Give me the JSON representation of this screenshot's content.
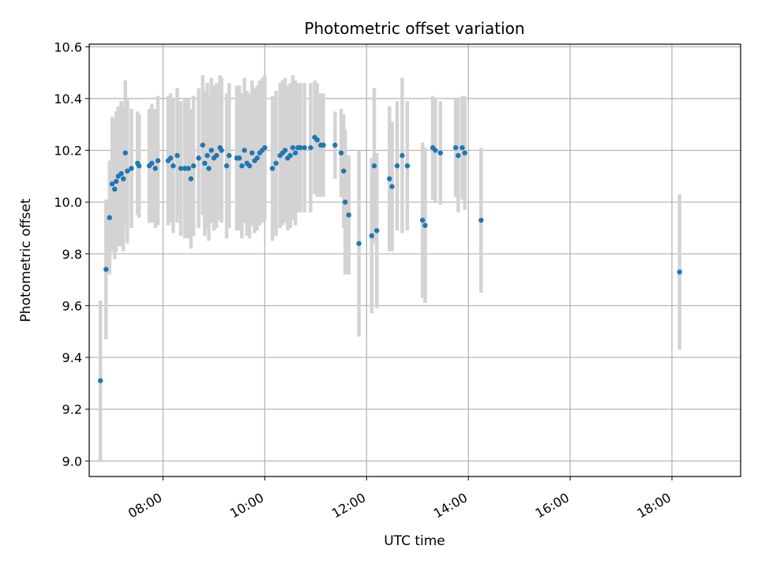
{
  "chart_data": {
    "type": "scatter",
    "title": "Photometric offset variation",
    "xlabel": "UTC time",
    "ylabel": "Photometric offset",
    "x_unit": "hours UTC",
    "xlim": [
      6.55,
      19.35
    ],
    "ylim": [
      8.94,
      10.61
    ],
    "x_ticks": [
      8,
      10,
      12,
      14,
      16,
      18
    ],
    "x_tick_labels": [
      "08:00",
      "10:00",
      "12:00",
      "14:00",
      "16:00",
      "18:00"
    ],
    "y_ticks": [
      9.0,
      9.2,
      9.4,
      9.6,
      9.8,
      10.0,
      10.2,
      10.4,
      10.6
    ],
    "y_tick_labels": [
      "9.0",
      "9.2",
      "9.4",
      "9.6",
      "9.8",
      "10.0",
      "10.2",
      "10.4",
      "10.6"
    ],
    "grid": true,
    "marker_color": "#1f77b4",
    "errorbar_color": "#d3d3d3",
    "points": [
      [
        6.77,
        9.31,
        0.31
      ],
      [
        6.88,
        9.74,
        0.27
      ],
      [
        6.95,
        9.94,
        0.22
      ],
      [
        7.0,
        10.07,
        0.26
      ],
      [
        7.05,
        10.05,
        0.27
      ],
      [
        7.08,
        10.08,
        0.27
      ],
      [
        7.12,
        10.1,
        0.27
      ],
      [
        7.18,
        10.11,
        0.28
      ],
      [
        7.22,
        10.09,
        0.28
      ],
      [
        7.26,
        10.19,
        0.28
      ],
      [
        7.3,
        10.12,
        0.28
      ],
      [
        7.38,
        10.13,
        0.23
      ],
      [
        7.5,
        10.15,
        0.2
      ],
      [
        7.53,
        10.14,
        0.2
      ],
      [
        7.73,
        10.14,
        0.22
      ],
      [
        7.78,
        10.15,
        0.23
      ],
      [
        7.85,
        10.13,
        0.23
      ],
      [
        7.9,
        10.16,
        0.25
      ],
      [
        8.1,
        10.16,
        0.25
      ],
      [
        8.15,
        10.17,
        0.25
      ],
      [
        8.2,
        10.14,
        0.26
      ],
      [
        8.28,
        10.18,
        0.26
      ],
      [
        8.35,
        10.13,
        0.26
      ],
      [
        8.43,
        10.13,
        0.27
      ],
      [
        8.5,
        10.13,
        0.27
      ],
      [
        8.55,
        10.09,
        0.27
      ],
      [
        8.6,
        10.14,
        0.27
      ],
      [
        8.7,
        10.17,
        0.27
      ],
      [
        8.78,
        10.22,
        0.27
      ],
      [
        8.82,
        10.15,
        0.28
      ],
      [
        8.87,
        10.18,
        0.28
      ],
      [
        8.9,
        10.13,
        0.28
      ],
      [
        8.95,
        10.2,
        0.28
      ],
      [
        9.0,
        10.17,
        0.28
      ],
      [
        9.05,
        10.18,
        0.28
      ],
      [
        9.12,
        10.21,
        0.28
      ],
      [
        9.15,
        10.2,
        0.28
      ],
      [
        9.25,
        10.14,
        0.28
      ],
      [
        9.3,
        10.18,
        0.28
      ],
      [
        9.45,
        10.17,
        0.28
      ],
      [
        9.5,
        10.17,
        0.28
      ],
      [
        9.55,
        10.14,
        0.28
      ],
      [
        9.6,
        10.2,
        0.28
      ],
      [
        9.65,
        10.15,
        0.28
      ],
      [
        9.7,
        10.14,
        0.28
      ],
      [
        9.75,
        10.19,
        0.28
      ],
      [
        9.8,
        10.16,
        0.28
      ],
      [
        9.85,
        10.17,
        0.28
      ],
      [
        9.9,
        10.19,
        0.28
      ],
      [
        9.95,
        10.2,
        0.28
      ],
      [
        10.0,
        10.21,
        0.28
      ],
      [
        10.15,
        10.13,
        0.28
      ],
      [
        10.22,
        10.15,
        0.28
      ],
      [
        10.3,
        10.18,
        0.28
      ],
      [
        10.35,
        10.19,
        0.28
      ],
      [
        10.4,
        10.2,
        0.28
      ],
      [
        10.45,
        10.17,
        0.28
      ],
      [
        10.5,
        10.18,
        0.28
      ],
      [
        10.55,
        10.21,
        0.28
      ],
      [
        10.6,
        10.19,
        0.28
      ],
      [
        10.65,
        10.21,
        0.25
      ],
      [
        10.7,
        10.21,
        0.25
      ],
      [
        10.78,
        10.21,
        0.25
      ],
      [
        10.9,
        10.21,
        0.25
      ],
      [
        10.98,
        10.25,
        0.22
      ],
      [
        11.03,
        10.24,
        0.22
      ],
      [
        11.1,
        10.22,
        0.2
      ],
      [
        11.15,
        10.22,
        0.2
      ],
      [
        11.38,
        10.22,
        0.13
      ],
      [
        11.5,
        10.19,
        0.17
      ],
      [
        11.55,
        10.12,
        0.22
      ],
      [
        11.58,
        10.0,
        0.28
      ],
      [
        11.65,
        9.95,
        0.23
      ],
      [
        11.85,
        9.84,
        0.36
      ],
      [
        12.1,
        9.87,
        0.3
      ],
      [
        12.15,
        10.14,
        0.3
      ],
      [
        12.2,
        9.89,
        0.3
      ],
      [
        12.45,
        10.09,
        0.28
      ],
      [
        12.5,
        10.06,
        0.25
      ],
      [
        12.6,
        10.14,
        0.25
      ],
      [
        12.7,
        10.18,
        0.3
      ],
      [
        12.8,
        10.14,
        0.25
      ],
      [
        13.1,
        9.93,
        0.3
      ],
      [
        13.15,
        9.91,
        0.3
      ],
      [
        13.3,
        10.21,
        0.2
      ],
      [
        13.35,
        10.2,
        0.2
      ],
      [
        13.45,
        10.19,
        0.2
      ],
      [
        13.75,
        10.21,
        0.19
      ],
      [
        13.8,
        10.18,
        0.22
      ],
      [
        13.88,
        10.21,
        0.2
      ],
      [
        13.93,
        10.19,
        0.22
      ],
      [
        14.25,
        9.93,
        0.28
      ],
      [
        18.15,
        9.73,
        0.3
      ]
    ]
  }
}
